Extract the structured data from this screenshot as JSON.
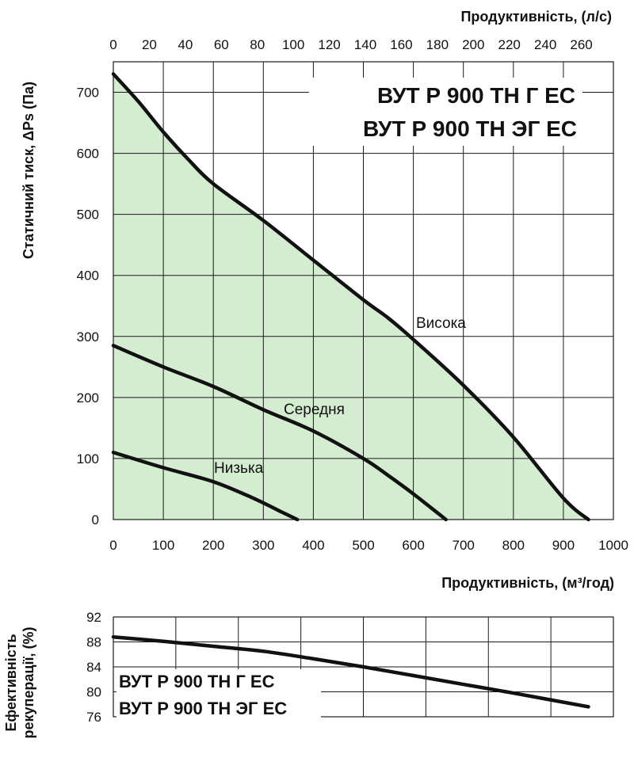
{
  "chart_data": [
    {
      "type": "line",
      "title": "ВУТ Р 900 ТН Г ЕС / ВУТ Р 900 ТН ЭГ ЕС",
      "model_lines": [
        "ВУТ Р 900 ТН Г ЕС",
        "ВУТ Р 900 ТН ЭГ ЕС"
      ],
      "xlabel": "Продуктивність, (м³/год)",
      "x2label": "Продуктивність, (л/с)",
      "ylabel": "Статичний тиск, ΔPs (Па)",
      "xlim": [
        0,
        1000
      ],
      "ylim": [
        0,
        750
      ],
      "x2lim": [
        0,
        277.8
      ],
      "x_ticks": [
        "0",
        "100",
        "200",
        "300",
        "400",
        "500",
        "600",
        "700",
        "800",
        "900",
        "1000"
      ],
      "x2_ticks": [
        "0",
        "20",
        "40",
        "60",
        "80",
        "100",
        "120",
        "140",
        "160",
        "180",
        "200",
        "220",
        "240",
        "260"
      ],
      "y_ticks": [
        "0",
        "100",
        "200",
        "300",
        "400",
        "500",
        "600",
        "700"
      ],
      "grid": true,
      "fill_color": "#d4ecd0",
      "line_color": "#111111",
      "series": [
        {
          "name": "Висока",
          "x": [
            0,
            50,
            100,
            150,
            200,
            300,
            400,
            500,
            550,
            600,
            700,
            800,
            900,
            950
          ],
          "y": [
            730,
            685,
            635,
            590,
            550,
            490,
            425,
            360,
            330,
            295,
            220,
            135,
            35,
            0
          ]
        },
        {
          "name": "Середня",
          "x": [
            0,
            100,
            200,
            300,
            400,
            500,
            550,
            600,
            665
          ],
          "y": [
            285,
            250,
            218,
            180,
            145,
            100,
            72,
            42,
            0
          ]
        },
        {
          "name": "Низька",
          "x": [
            0,
            100,
            200,
            280,
            330,
            368
          ],
          "y": [
            110,
            85,
            62,
            35,
            15,
            0
          ]
        }
      ]
    },
    {
      "type": "line",
      "model_lines": [
        "ВУТ Р 900 ТН Г ЕС",
        "ВУТ Р 900 ТН ЭГ ЕС"
      ],
      "ylabel_lines": [
        "Ефективність",
        "рекуперації, (%)"
      ],
      "xlim": [
        0,
        1000
      ],
      "ylim": [
        76,
        92
      ],
      "y_ticks": [
        "92",
        "88",
        "84",
        "80",
        "76"
      ],
      "grid": true,
      "series": [
        {
          "name": "",
          "x": [
            0,
            100,
            200,
            300,
            400,
            500,
            600,
            700,
            800,
            950
          ],
          "y": [
            88.8,
            88.1,
            87.3,
            86.5,
            85.3,
            84.0,
            82.6,
            81.2,
            79.8,
            77.6
          ]
        }
      ]
    }
  ]
}
